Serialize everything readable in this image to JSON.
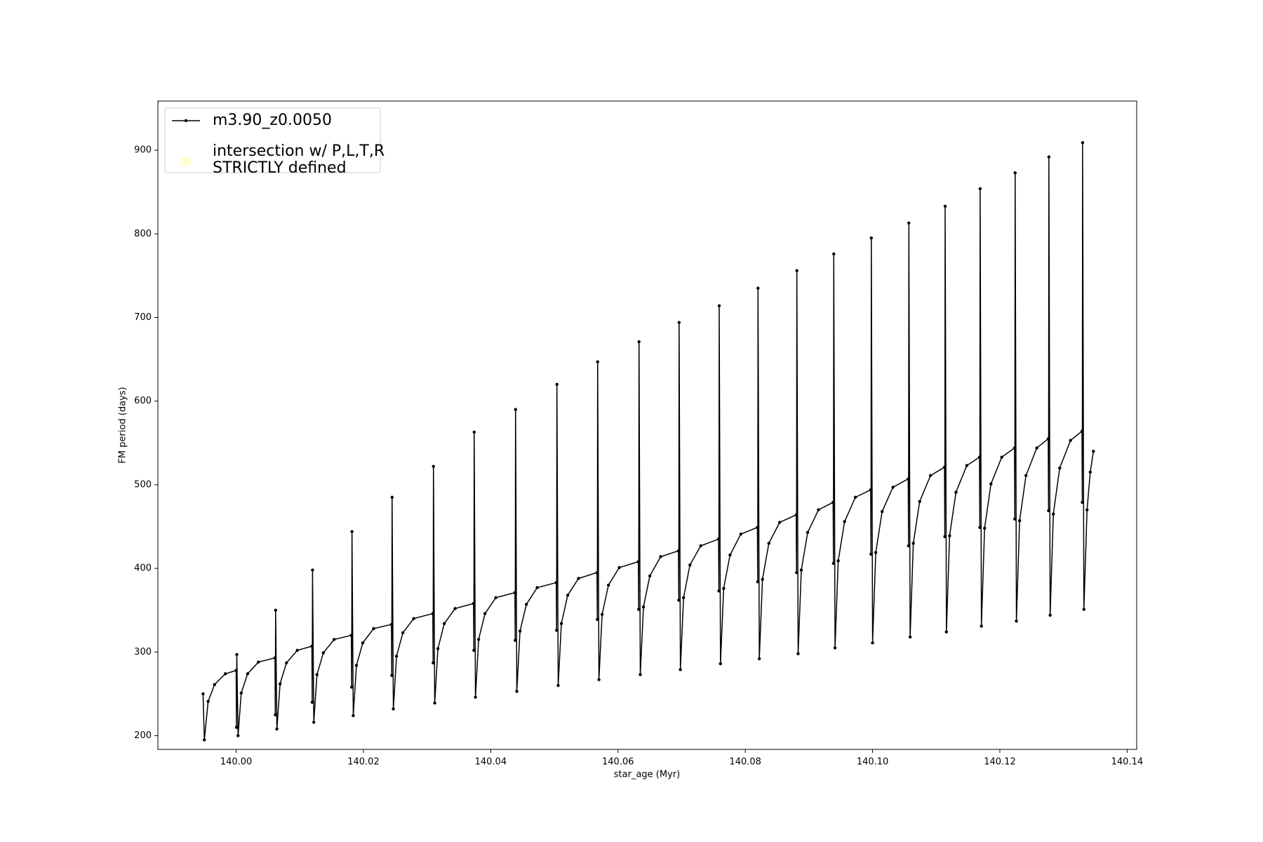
{
  "chart_data": {
    "type": "line",
    "xlabel": "star_age (Myr)",
    "ylabel": "FM period (days)",
    "xlim": [
      139.9877,
      140.1415
    ],
    "ylim": [
      183.6,
      958.8
    ],
    "xticks": [
      {
        "value": 140.0,
        "label": "140.00"
      },
      {
        "value": 140.02,
        "label": "140.02"
      },
      {
        "value": 140.04,
        "label": "140.04"
      },
      {
        "value": 140.06,
        "label": "140.06"
      },
      {
        "value": 140.08,
        "label": "140.08"
      },
      {
        "value": 140.1,
        "label": "140.10"
      },
      {
        "value": 140.12,
        "label": "140.12"
      },
      {
        "value": 140.14,
        "label": "140.14"
      }
    ],
    "yticks": [
      200,
      300,
      400,
      500,
      600,
      700,
      800,
      900
    ],
    "legend": "upper left",
    "series": [
      {
        "name": "m3.90_z0.0050",
        "color": "#000000",
        "x": [
          139.9948,
          139.995,
          139.9956,
          139.9966,
          139.9983,
          140.0,
          140.00005,
          140.0001,
          140.0003,
          140.0008,
          140.0018,
          140.0035,
          140.0061,
          140.00615,
          140.0062,
          140.0064,
          140.0069,
          140.0079,
          140.0096,
          140.0119,
          140.01195,
          140.012,
          140.0122,
          140.0127,
          140.0137,
          140.0154,
          140.0181,
          140.01815,
          140.0182,
          140.0184,
          140.0189,
          140.0199,
          140.0216,
          140.0244,
          140.02445,
          140.0245,
          140.0247,
          140.0252,
          140.0262,
          140.0279,
          140.0309,
          140.03095,
          140.031,
          140.0312,
          140.0317,
          140.0327,
          140.0344,
          140.0373,
          140.03735,
          140.0374,
          140.0376,
          140.0381,
          140.0391,
          140.0408,
          140.0438,
          140.04385,
          140.0439,
          140.0441,
          140.0446,
          140.0456,
          140.0473,
          140.0503,
          140.05035,
          140.0504,
          140.0506,
          140.0511,
          140.0521,
          140.0538,
          140.0567,
          140.05675,
          140.0568,
          140.057,
          140.0575,
          140.0585,
          140.0602,
          140.0632,
          140.06325,
          140.0633,
          140.0635,
          140.064,
          140.065,
          140.0667,
          140.0695,
          140.06955,
          140.0696,
          140.0698,
          140.0703,
          140.0713,
          140.073,
          140.0758,
          140.07585,
          140.0759,
          140.0761,
          140.0766,
          140.0776,
          140.0793,
          140.0819,
          140.08195,
          140.082,
          140.0822,
          140.0827,
          140.0837,
          140.0854,
          140.088,
          140.08805,
          140.0881,
          140.0883,
          140.0888,
          140.0898,
          140.0915,
          140.0938,
          140.09385,
          140.0939,
          140.0941,
          140.0946,
          140.0956,
          140.0973,
          140.0997,
          140.09975,
          140.0998,
          140.1,
          140.1005,
          140.1015,
          140.1032,
          140.1056,
          140.10565,
          140.1057,
          140.1059,
          140.1064,
          140.1074,
          140.1091,
          140.1113,
          140.11135,
          140.1114,
          140.1116,
          140.1121,
          140.1131,
          140.1148,
          140.1168,
          140.11685,
          140.1169,
          140.1171,
          140.1176,
          140.1186,
          140.1203,
          140.1223,
          140.12235,
          140.1224,
          140.1226,
          140.1231,
          140.1241,
          140.1258,
          140.1276,
          140.12765,
          140.1277,
          140.1279,
          140.1284,
          140.1294,
          140.1311,
          140.1329,
          140.13295,
          140.133,
          140.1332,
          140.1337,
          140.1342,
          140.1347
        ],
        "values": [
          250,
          195,
          241,
          261,
          274,
          278,
          210,
          297,
          200,
          251,
          274,
          288,
          293,
          225,
          350,
          208,
          262,
          287,
          302,
          307,
          240,
          398,
          216,
          273,
          299,
          315,
          320,
          258,
          444,
          224,
          284,
          311,
          328,
          333,
          272,
          485,
          232,
          295,
          323,
          340,
          346,
          287,
          522,
          239,
          304,
          334,
          352,
          358,
          302,
          563,
          246,
          315,
          346,
          365,
          371,
          314,
          590,
          253,
          325,
          357,
          377,
          383,
          326,
          620,
          260,
          334,
          368,
          388,
          395,
          339,
          647,
          267,
          345,
          380,
          401,
          408,
          351,
          671,
          273,
          354,
          391,
          414,
          421,
          362,
          694,
          279,
          365,
          404,
          427,
          435,
          373,
          714,
          286,
          376,
          416,
          441,
          449,
          384,
          735,
          292,
          387,
          430,
          455,
          464,
          395,
          756,
          298,
          398,
          443,
          470,
          479,
          406,
          776,
          305,
          409,
          456,
          485,
          494,
          417,
          795,
          311,
          419,
          468,
          497,
          507,
          427,
          813,
          318,
          430,
          480,
          511,
          521,
          438,
          833,
          324,
          439,
          491,
          523,
          533,
          449,
          854,
          331,
          448,
          501,
          533,
          544,
          459,
          873,
          337,
          457,
          511,
          544,
          555,
          469,
          892,
          344,
          465,
          520,
          553,
          564,
          479,
          909,
          351,
          470,
          515,
          540
        ]
      },
      {
        "name": "intersection w/ P,L,T,R\nSTRICTLY defined",
        "type": "scatter",
        "color": "#ffffb3",
        "x": [],
        "values": []
      }
    ]
  }
}
